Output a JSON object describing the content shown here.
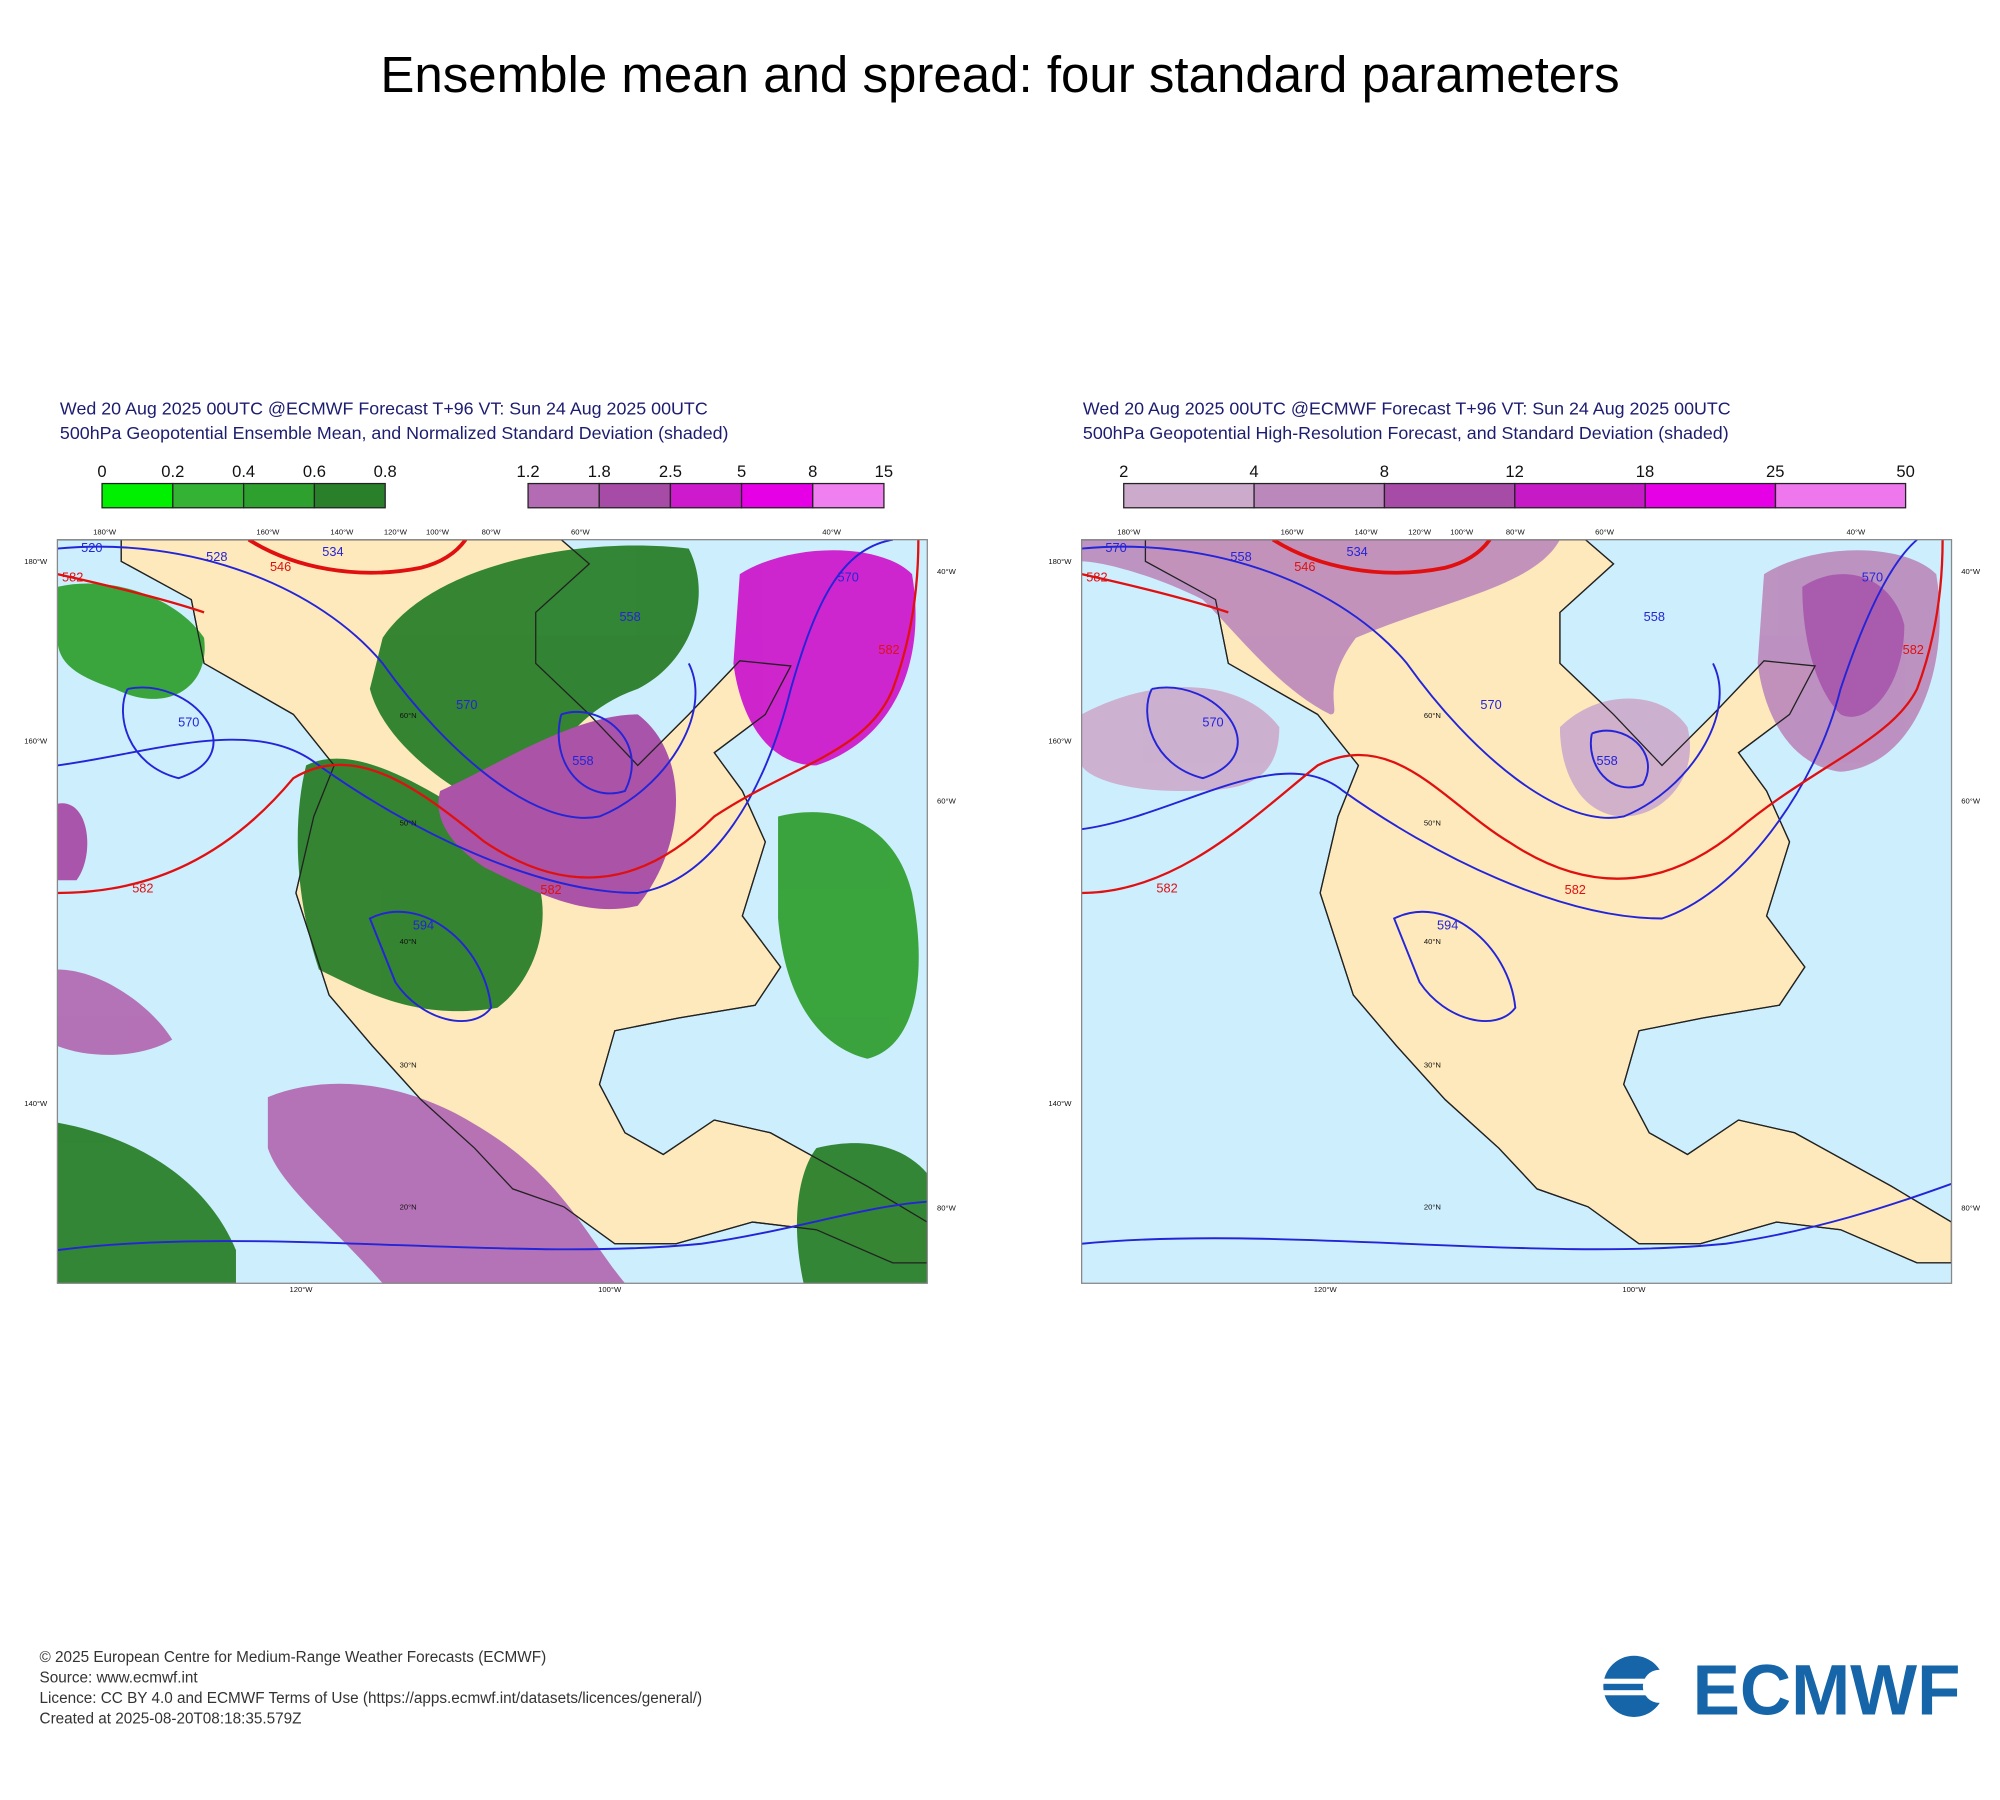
{
  "title": "Ensemble mean and spread: four standard parameters",
  "panels": [
    {
      "header": [
        "Wed 20 Aug 2025 00UTC @ECMWF Forecast T+96 VT: Sun 24 Aug 2025 00UTC",
        "500hPa Geopotential Ensemble Mean, and Normalized Standard Deviation (shaded)"
      ],
      "legends": [
        [
          "0",
          "0.2",
          "0.4",
          "0.6",
          "0.8"
        ],
        [
          "1.2",
          "1.8",
          "2.5",
          "5",
          "8",
          "15"
        ]
      ],
      "grid_labels": [
        "180°W",
        "160°W",
        "140°W",
        "120°W",
        "100°W",
        "80°W",
        "60°W",
        "40°W",
        "180°W",
        "160°W",
        "140°W",
        "40°W",
        "60°W",
        "80°W",
        "120°W",
        "100°W",
        "60°N",
        "50°N",
        "40°N",
        "30°N",
        "20°N"
      ],
      "contour_labels": [
        "520",
        "528",
        "546",
        "534",
        "582",
        "570",
        "570",
        "558",
        "558",
        "570",
        "582",
        "582",
        "582",
        "594"
      ]
    },
    {
      "header": [
        "Wed 20 Aug 2025 00UTC @ECMWF Forecast T+96 VT: Sun 24 Aug 2025 00UTC",
        "500hPa Geopotential High-Resolution Forecast, and Standard Deviation (shaded)"
      ],
      "legends": [
        [
          "2",
          "4",
          "8",
          "12",
          "18",
          "25",
          "50"
        ]
      ],
      "grid_labels": [
        "180°W",
        "160°W",
        "140°W",
        "120°W",
        "100°W",
        "80°W",
        "60°W",
        "40°W",
        "180°W",
        "160°W",
        "140°W",
        "40°W",
        "60°W",
        "80°W",
        "120°W",
        "100°W",
        "60°N",
        "50°N",
        "40°N",
        "30°N",
        "20°N"
      ],
      "contour_labels": [
        "570",
        "558",
        "546",
        "534",
        "582",
        "570",
        "570",
        "558",
        "558",
        "570",
        "582",
        "582",
        "582",
        "594"
      ]
    }
  ],
  "footer": [
    "© 2025 European Centre for Medium-Range Weather Forecasts (ECMWF)",
    "Source: www.ecmwf.int",
    "Licence: CC BY 4.0 and ECMWF Terms of Use (https://apps.ecmwf.int/datasets/licences/general/)",
    "Created at 2025-08-20T08:18:35.579Z"
  ],
  "logo": "ECMWF"
}
